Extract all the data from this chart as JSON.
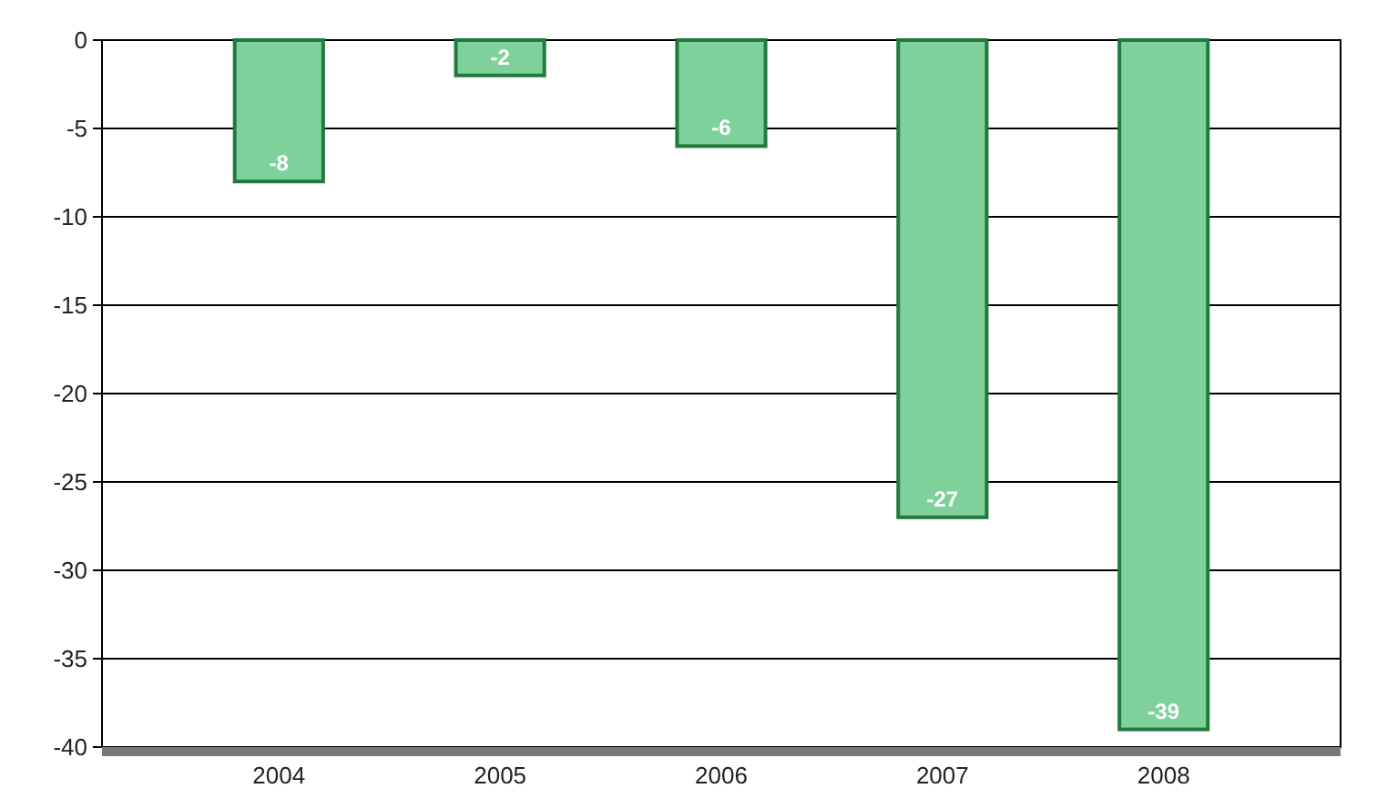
{
  "chart_data": {
    "type": "bar",
    "categories": [
      "2004",
      "2005",
      "2006",
      "2007",
      "2008"
    ],
    "values": [
      -8,
      -2,
      -6,
      -27,
      -39
    ],
    "color": "#7fd19c",
    "ylim": [
      -40,
      0
    ],
    "yticks": [
      -40,
      -35,
      -30,
      -25,
      -20,
      -15,
      -10,
      -5,
      0
    ],
    "grid": "y",
    "data_labels": true
  }
}
